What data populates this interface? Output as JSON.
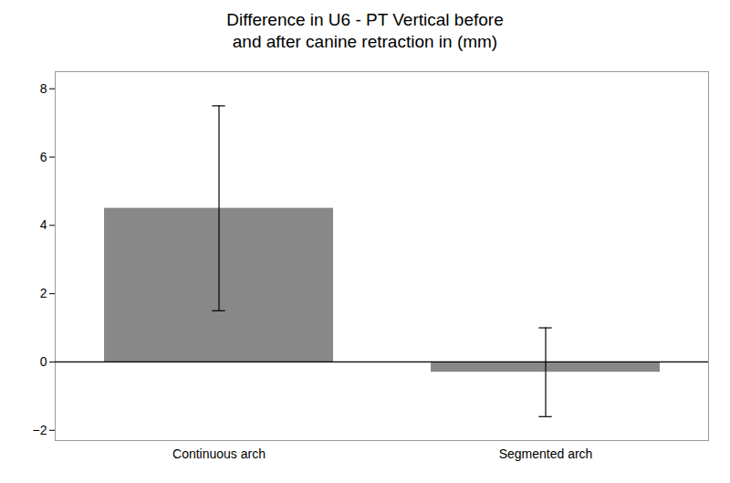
{
  "chart_data": {
    "type": "bar",
    "title": "Difference in U6 - PT Vertical before\nand after canine retraction in (mm)",
    "categories": [
      "Continuous arch",
      "Segmented arch"
    ],
    "values": [
      4.5,
      -0.3
    ],
    "errors_upper": [
      3.0,
      1.3
    ],
    "errors_lower": [
      3.0,
      1.3
    ],
    "color": "#888888",
    "ylim": [
      -2.3,
      8.5
    ],
    "yticks": [
      -2,
      0,
      2,
      4,
      6,
      8
    ],
    "grid": false
  }
}
